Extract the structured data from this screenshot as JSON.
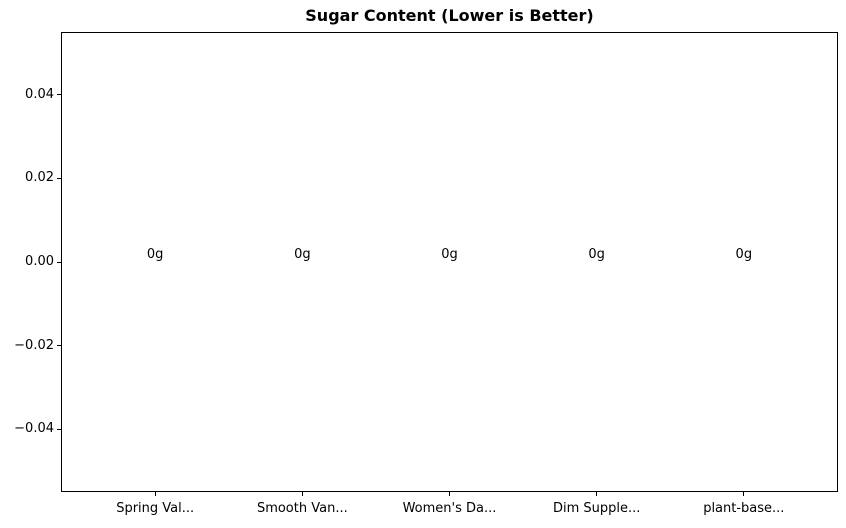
{
  "chart_data": {
    "type": "bar",
    "title": "Sugar Content (Lower is Better)",
    "categories": [
      "Spring Val...",
      "Smooth Van...",
      "Women's Da...",
      "Dim Supple...",
      "plant-base..."
    ],
    "values": [
      0,
      0,
      0,
      0,
      0
    ],
    "bar_labels": [
      "0g",
      "0g",
      "0g",
      "0g",
      "0g"
    ],
    "xlabel": "",
    "ylabel": "",
    "ylim": [
      -0.055,
      0.055
    ],
    "yticks": {
      "values": [
        0.04,
        0.02,
        0,
        -0.02,
        -0.04
      ],
      "labels": [
        "0.04",
        "0.02",
        "0.00",
        "−0.02",
        "−0.04"
      ]
    },
    "grid": false,
    "legend": null,
    "bar_width_fraction": 0.8,
    "text_color": "#000000",
    "background_color": "#ffffff",
    "axes_edge_color": "#000000"
  }
}
